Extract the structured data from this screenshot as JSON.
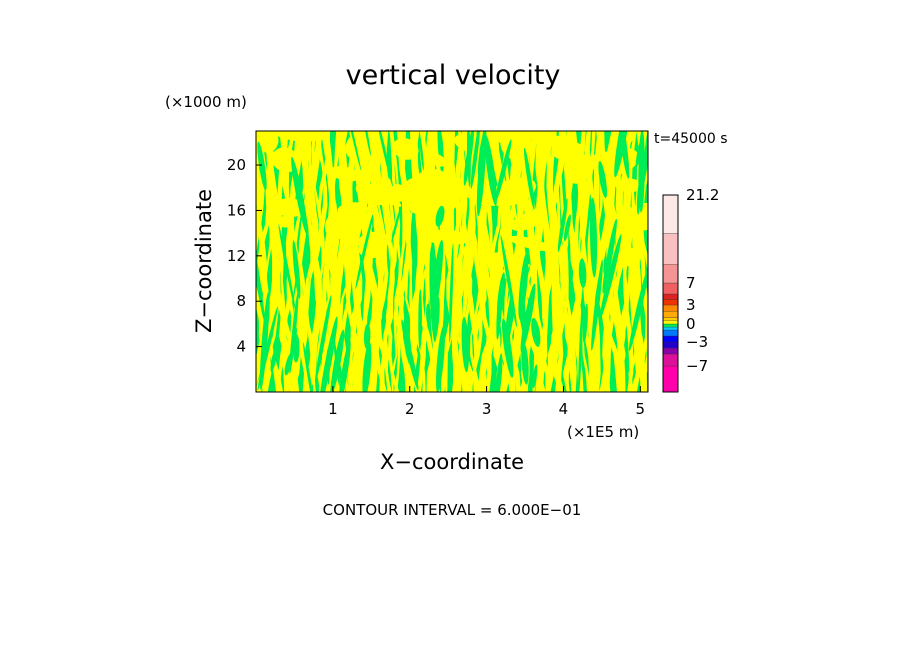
{
  "chart_data": {
    "type": "heatmap",
    "title": "vertical velocity",
    "xlabel": "X−coordinate",
    "ylabel": "Z−coordinate",
    "x_unit": "(×1E5 m)",
    "y_unit": "(×1000 m)",
    "time_label": "t=45000 s",
    "xlim": [
      0,
      5.1
    ],
    "ylim": [
      0,
      23
    ],
    "x_ticks": [
      1,
      2,
      3,
      4,
      5
    ],
    "y_ticks": [
      4,
      8,
      12,
      16,
      20
    ],
    "x_tick_labels": [
      "1",
      "2",
      "3",
      "4",
      "5"
    ],
    "y_tick_labels": [
      "4",
      "8",
      "12",
      "16",
      "20"
    ],
    "contour_interval_label": "CONTOUR INTERVAL = 6.000E−01",
    "dominant_levels": [
      {
        "name": "slightly negative",
        "color": "#00ee55"
      },
      {
        "name": "slightly positive",
        "color": "#ffff00"
      }
    ],
    "colorbar": {
      "labels": [
        "21.2",
        "7",
        "3",
        "0",
        "−3",
        "−7"
      ],
      "label_values": [
        21.2,
        7,
        3,
        0,
        -3,
        -7
      ],
      "segments": [
        {
          "from": -10,
          "to": -7,
          "color": "#ff00aa"
        },
        {
          "from": -7,
          "to": -5,
          "color": "#dd1199"
        },
        {
          "from": -5,
          "to": -4,
          "color": "#8800aa"
        },
        {
          "from": -4,
          "to": -3,
          "color": "#2200cc"
        },
        {
          "from": -3,
          "to": -2,
          "color": "#0000ff"
        },
        {
          "from": -2,
          "to": -1,
          "color": "#0077ff"
        },
        {
          "from": -1,
          "to": -0.5,
          "color": "#00ccff"
        },
        {
          "from": -0.5,
          "to": 0,
          "color": "#00ee55"
        },
        {
          "from": 0,
          "to": 0.5,
          "color": "#ffff00"
        },
        {
          "from": 0.5,
          "to": 1,
          "color": "#ffcc00"
        },
        {
          "from": 1,
          "to": 2,
          "color": "#ffaa00"
        },
        {
          "from": 2,
          "to": 3,
          "color": "#ff8800"
        },
        {
          "from": 3,
          "to": 4,
          "color": "#ee3300"
        },
        {
          "from": 4,
          "to": 5,
          "color": "#dd2222"
        },
        {
          "from": 5,
          "to": 7,
          "color": "#f06060"
        },
        {
          "from": 7,
          "to": 10,
          "color": "#f49494"
        },
        {
          "from": 10,
          "to": 15,
          "color": "#f8c0c0"
        },
        {
          "from": 15,
          "to": 21.2,
          "color": "#fde8e8"
        }
      ]
    }
  }
}
